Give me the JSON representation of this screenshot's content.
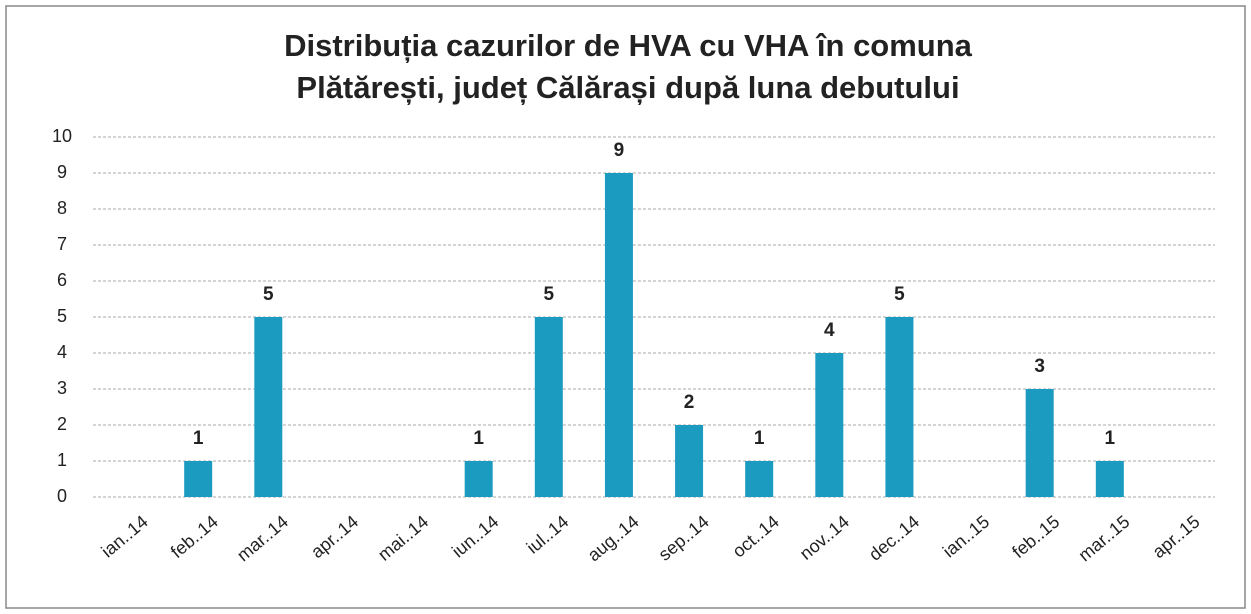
{
  "chart_data": {
    "type": "bar",
    "title": [
      "Distribuția cazurilor de HVA cu VHA în comuna",
      "Plătărești, județ Călărași după luna debutului"
    ],
    "categories": [
      "ian..14",
      "feb..14",
      "mar..14",
      "apr..14",
      "mai..14",
      "iun..14",
      "iul..14",
      "aug..14",
      "sep..14",
      "oct..14",
      "nov..14",
      "dec..14",
      "ian..15",
      "feb..15",
      "mar..15",
      "apr..15"
    ],
    "values": [
      0,
      1,
      5,
      0,
      0,
      1,
      5,
      9,
      2,
      1,
      4,
      5,
      0,
      3,
      1,
      0
    ],
    "color": "#1b9bc0",
    "ylim": [
      0,
      10
    ],
    "yticks": [
      0,
      1,
      2,
      3,
      4,
      5,
      6,
      7,
      8,
      9,
      10
    ],
    "grid": true
  }
}
